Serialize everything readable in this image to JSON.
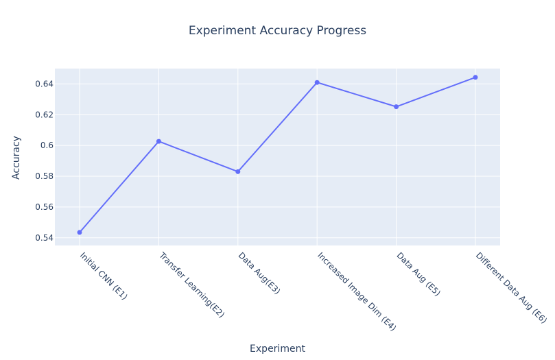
{
  "chart_data": {
    "type": "line",
    "title": "Experiment Accuracy Progress",
    "xlabel": "Experiment",
    "ylabel": "Accuracy",
    "categories": [
      "Initial CNN (E1)",
      "Transfer Learning(E2)",
      "Data Aug(E3)",
      "Increased Image Dim (E4)",
      "Data Aug (E5)",
      "Different Data Aug (E6)"
    ],
    "series": [
      {
        "values": [
          0.5435,
          0.6027,
          0.583,
          0.641,
          0.6252,
          0.6443
        ]
      }
    ],
    "yticks": [
      "0.54",
      "0.56",
      "0.58",
      "0.6",
      "0.62",
      "0.64"
    ],
    "ylim": [
      0.535,
      0.65
    ],
    "grid": true,
    "colors": {
      "line": "#636efa",
      "plot_bg": "#e5ecf6",
      "grid": "#ffffff",
      "text": "#2a3f5f"
    }
  }
}
